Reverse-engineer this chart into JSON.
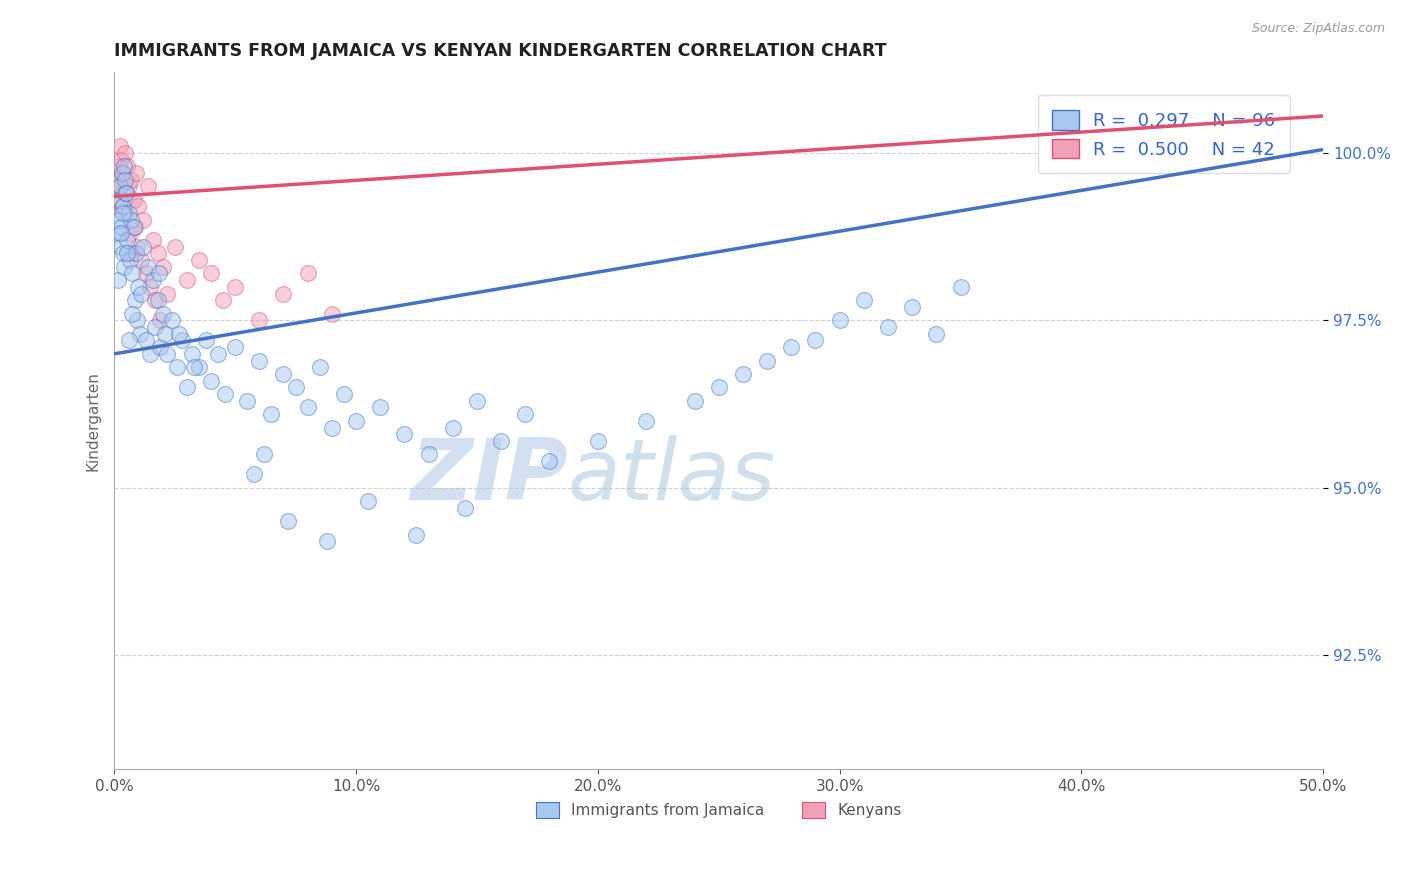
{
  "title": "IMMIGRANTS FROM JAMAICA VS KENYAN KINDERGARTEN CORRELATION CHART",
  "source": "Source: ZipAtlas.com",
  "ylabel": "Kindergarten",
  "xmin": 0.0,
  "xmax": 50.0,
  "ymin": 90.8,
  "ymax": 101.2,
  "yticks": [
    92.5,
    95.0,
    97.5,
    100.0
  ],
  "ytick_labels": [
    "92.5%",
    "95.0%",
    "97.5%",
    "100.0%"
  ],
  "xticks": [
    0.0,
    10.0,
    20.0,
    30.0,
    40.0,
    50.0
  ],
  "xtick_labels": [
    "0.0%",
    "10.0%",
    "20.0%",
    "30.0%",
    "40.0%",
    "50.0%"
  ],
  "blue_label": "Immigrants from Jamaica",
  "pink_label": "Kenyans",
  "blue_R": 0.297,
  "blue_N": 96,
  "pink_R": 0.5,
  "pink_N": 42,
  "blue_color": "#A8C8F0",
  "pink_color": "#F0A0B8",
  "blue_line_color": "#4472C4",
  "pink_line_color": "#E05070",
  "watermark_zip": "ZIP",
  "watermark_atlas": "atlas",
  "blue_trend_x0": 0.0,
  "blue_trend_y0": 97.0,
  "blue_trend_x1": 50.0,
  "blue_trend_y1": 100.05,
  "pink_trend_x0": 0.0,
  "pink_trend_y0": 99.35,
  "pink_trend_x1": 50.0,
  "pink_trend_y1": 100.55,
  "blue_x": [
    0.15,
    0.18,
    0.2,
    0.22,
    0.25,
    0.28,
    0.3,
    0.32,
    0.35,
    0.38,
    0.4,
    0.42,
    0.45,
    0.5,
    0.55,
    0.6,
    0.65,
    0.7,
    0.75,
    0.8,
    0.85,
    0.9,
    0.95,
    1.0,
    1.05,
    1.1,
    1.2,
    1.3,
    1.4,
    1.5,
    1.6,
    1.7,
    1.8,
    1.9,
    2.0,
    2.1,
    2.2,
    2.4,
    2.6,
    2.8,
    3.0,
    3.2,
    3.5,
    3.8,
    4.0,
    4.3,
    4.6,
    5.0,
    5.5,
    6.0,
    6.5,
    7.0,
    7.5,
    8.0,
    8.5,
    9.0,
    9.5,
    10.0,
    11.0,
    12.0,
    13.0,
    14.0,
    15.0,
    16.0,
    17.0,
    18.0,
    20.0,
    22.0,
    24.0,
    25.0,
    26.0,
    27.0,
    28.0,
    29.0,
    30.0,
    31.0,
    32.0,
    33.0,
    34.0,
    35.0,
    7.2,
    8.8,
    10.5,
    12.5,
    14.5,
    5.8,
    6.2,
    3.3,
    2.7,
    1.85,
    0.6,
    0.72,
    0.55,
    0.38,
    0.28,
    0.48
  ],
  "blue_y": [
    98.1,
    98.8,
    99.0,
    99.5,
    99.3,
    98.6,
    98.9,
    99.7,
    99.2,
    98.5,
    99.8,
    98.3,
    99.6,
    99.4,
    98.7,
    99.1,
    98.4,
    99.0,
    98.2,
    98.9,
    97.8,
    98.5,
    97.5,
    98.0,
    97.3,
    97.9,
    98.6,
    97.2,
    98.3,
    97.0,
    98.1,
    97.4,
    97.8,
    97.1,
    97.6,
    97.3,
    97.0,
    97.5,
    96.8,
    97.2,
    96.5,
    97.0,
    96.8,
    97.2,
    96.6,
    97.0,
    96.4,
    97.1,
    96.3,
    96.9,
    96.1,
    96.7,
    96.5,
    96.2,
    96.8,
    95.9,
    96.4,
    96.0,
    96.2,
    95.8,
    95.5,
    95.9,
    96.3,
    95.7,
    96.1,
    95.4,
    95.7,
    96.0,
    96.3,
    96.5,
    96.7,
    96.9,
    97.1,
    97.2,
    97.5,
    97.8,
    97.4,
    97.7,
    97.3,
    98.0,
    94.5,
    94.2,
    94.8,
    94.3,
    94.7,
    95.2,
    95.5,
    96.8,
    97.3,
    98.2,
    97.2,
    97.6,
    98.5,
    99.1,
    98.8,
    99.4
  ],
  "pink_x": [
    0.1,
    0.15,
    0.18,
    0.22,
    0.25,
    0.28,
    0.32,
    0.35,
    0.4,
    0.45,
    0.5,
    0.55,
    0.6,
    0.65,
    0.7,
    0.75,
    0.8,
    0.85,
    0.9,
    0.95,
    1.0,
    1.1,
    1.2,
    1.3,
    1.4,
    1.5,
    1.6,
    1.7,
    1.8,
    1.9,
    2.0,
    2.2,
    2.5,
    3.0,
    3.5,
    4.0,
    4.5,
    5.0,
    6.0,
    7.0,
    8.0,
    9.0
  ],
  "pink_y": [
    99.3,
    99.6,
    99.8,
    99.5,
    100.1,
    99.9,
    99.2,
    99.7,
    99.4,
    100.0,
    99.1,
    99.8,
    99.5,
    98.8,
    99.6,
    98.5,
    99.3,
    98.9,
    99.7,
    98.6,
    99.2,
    98.4,
    99.0,
    98.2,
    99.5,
    98.0,
    98.7,
    97.8,
    98.5,
    97.5,
    98.3,
    97.9,
    98.6,
    98.1,
    98.4,
    98.2,
    97.8,
    98.0,
    97.5,
    97.9,
    98.2,
    97.6
  ]
}
